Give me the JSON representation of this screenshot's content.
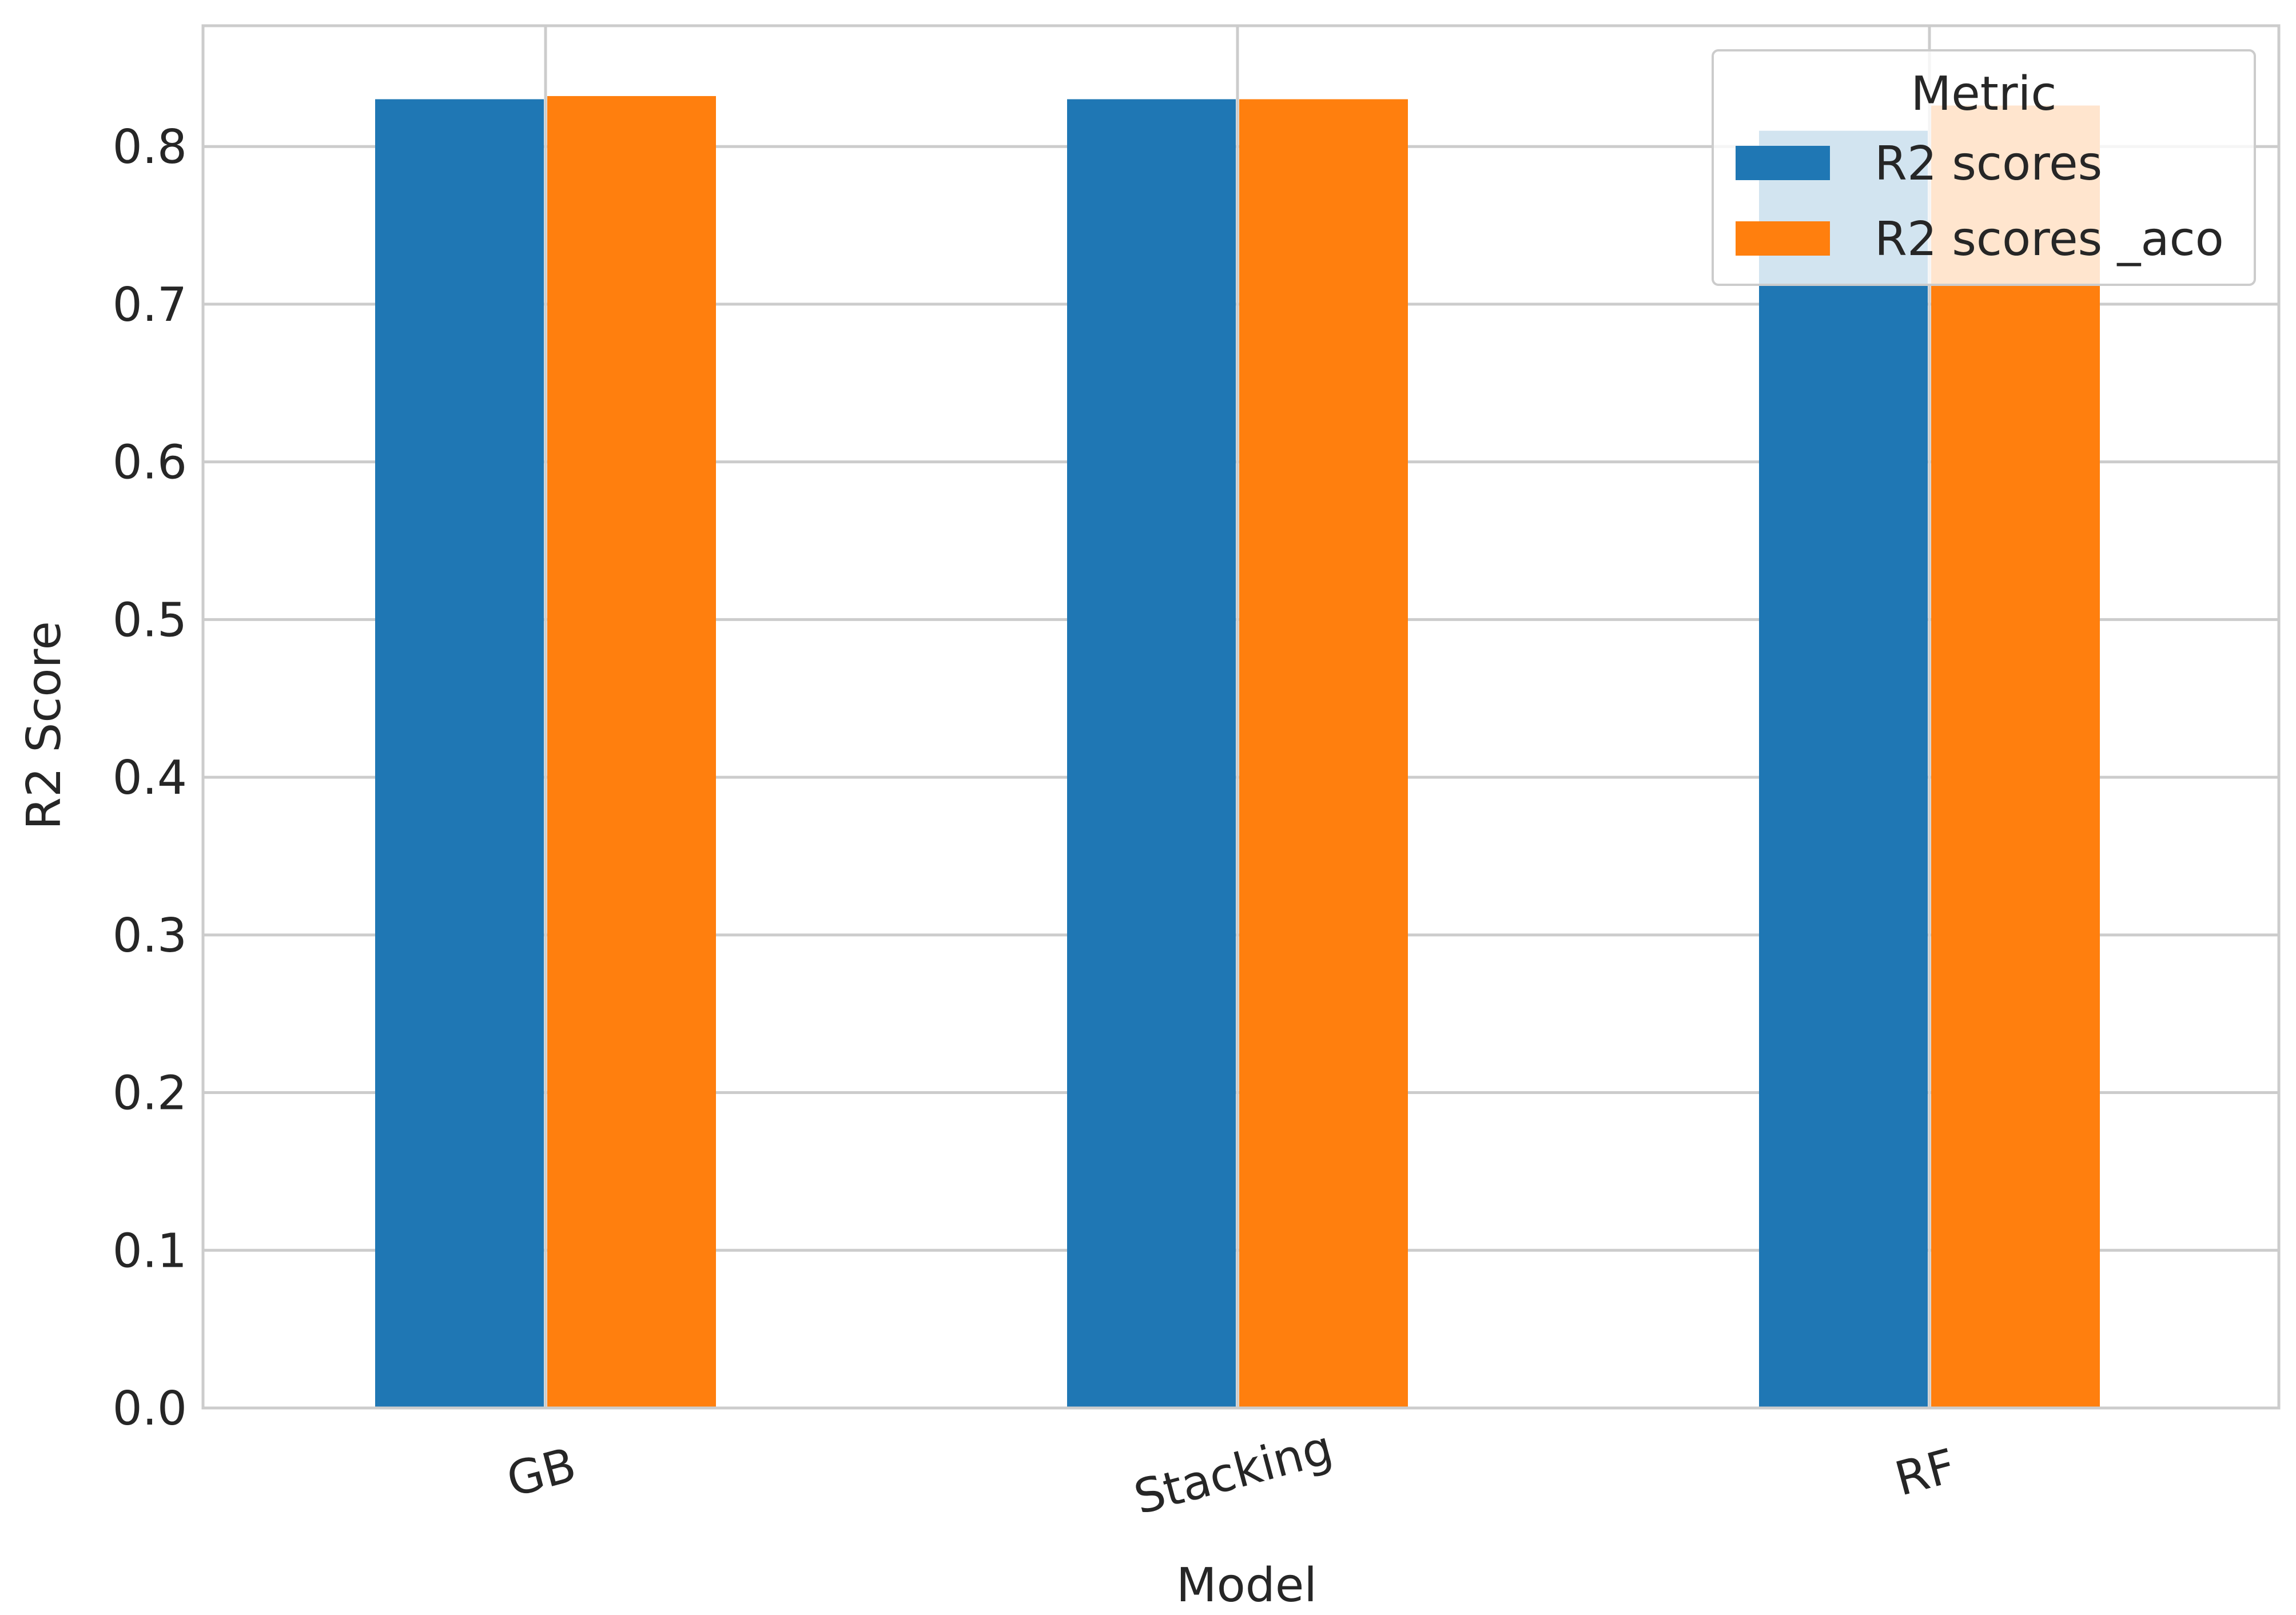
{
  "chart_data": {
    "type": "bar",
    "title": "",
    "xlabel": "Model",
    "ylabel": "R2 Score",
    "categories": [
      "GB",
      "Stacking",
      "RF"
    ],
    "series": [
      {
        "name": "R2 scores",
        "values": [
          0.83,
          0.83,
          0.81
        ],
        "color": "#1f77b4"
      },
      {
        "name": "R2 scores _aco",
        "values": [
          0.832,
          0.83,
          0.826
        ],
        "color": "#ff7f0e"
      }
    ],
    "ylim": [
      0,
      0.8766
    ],
    "yticks": [
      "0.0",
      "0.1",
      "0.2",
      "0.3",
      "0.4",
      "0.5",
      "0.6",
      "0.7",
      "0.8"
    ],
    "grid": true,
    "legend": {
      "title": "Metric",
      "position": "top-right"
    }
  }
}
